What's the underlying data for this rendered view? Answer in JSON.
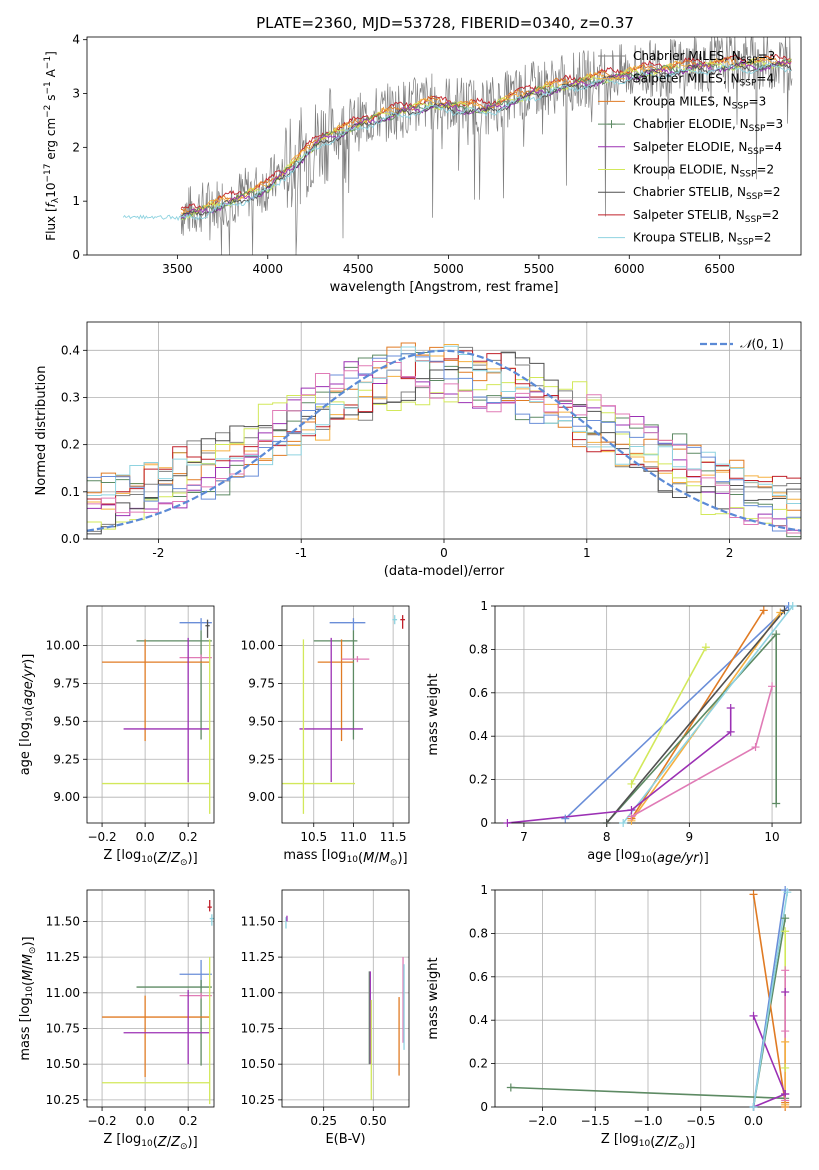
{
  "title": "PLATE=2360, MJD=53728, FIBERID=0340, z=0.37",
  "colors": {
    "chabrier_miles": "#808080",
    "salpeter_miles": "#f5b041",
    "kroupa_miles": "#e07b24",
    "chabrier_elodie": "#5d8a63",
    "salpeter_elodie": "#9b30b4",
    "kroupa_elodie": "#d2e85a",
    "chabrier_stelib": "#505050",
    "salpeter_stelib": "#c0202a",
    "kroupa_stelib": "#8fd3e0",
    "blue": "#6a8ed8",
    "pink": "#e07bb6"
  },
  "chart_data": [
    {
      "id": "spectrum",
      "type": "line",
      "xlabel": "wavelength [Angstrom, rest frame]",
      "ylabel_html": "Flux [<tspan font-style='italic'>f</tspan><tspan font-size='9' dy='3'>λ</tspan><tspan dy='-3'>10</tspan><tspan font-size='9' dy='-5'>−17</tspan><tspan dy='5'> erg cm</tspan><tspan font-size='9' dy='-5'>−2</tspan><tspan dy='5'> s</tspan><tspan font-size='9' dy='-5'>−1</tspan><tspan dy='5'> A</tspan><tspan font-size='9' dy='-5'>−1</tspan><tspan dy='5'>]</tspan>",
      "xlim": [
        3000,
        6950
      ],
      "ylim": [
        0,
        4.05
      ],
      "xticks": [
        3500,
        4000,
        4500,
        5000,
        5500,
        6000,
        6500
      ],
      "yticks": [
        0,
        1,
        2,
        3,
        4
      ],
      "legend": [
        {
          "label": "Chabrier MILES, N",
          "sub": "SSP",
          "n": "=3",
          "color": "chabrier_miles",
          "marker": false
        },
        {
          "label": "Salpeter MILES, N",
          "sub": "SSP",
          "n": "=4",
          "color": "salpeter_miles",
          "marker": false
        },
        {
          "label": "Kroupa MILES, N",
          "sub": "SSP",
          "n": "=3",
          "color": "kroupa_miles",
          "marker": false
        },
        {
          "label": "Chabrier ELODIE, N",
          "sub": "SSP",
          "n": "=3",
          "color": "chabrier_elodie",
          "marker": true
        },
        {
          "label": "Salpeter ELODIE, N",
          "sub": "SSP",
          "n": "=4",
          "color": "salpeter_elodie",
          "marker": false
        },
        {
          "label": "Kroupa ELODIE, N",
          "sub": "SSP",
          "n": "=2",
          "color": "kroupa_elodie",
          "marker": false
        },
        {
          "label": "Chabrier STELIB, N",
          "sub": "SSP",
          "n": "=2",
          "color": "chabrier_stelib",
          "marker": false
        },
        {
          "label": "Salpeter STELIB, N",
          "sub": "SSP",
          "n": "=2",
          "color": "salpeter_stelib",
          "marker": false
        },
        {
          "label": "Kroupa STELIB, N",
          "sub": "SSP",
          "n": "=2",
          "color": "kroupa_stelib",
          "marker": false
        }
      ],
      "data_trend": {
        "x": [
          3200,
          3500,
          3800,
          4000,
          4300,
          4600,
          4900,
          5200,
          5500,
          5800,
          6100,
          6400,
          6800
        ],
        "y": [
          0.72,
          0.75,
          1.05,
          1.3,
          2.2,
          2.6,
          2.85,
          2.75,
          3.1,
          3.3,
          3.45,
          3.55,
          3.6
        ]
      },
      "models": [
        {
          "color": "salpeter_stelib",
          "x_start": 3520,
          "offset": 0.05
        },
        {
          "color": "kroupa_miles",
          "x_start": 3520,
          "offset": 0.02
        },
        {
          "color": "salpeter_miles",
          "x_start": 3520,
          "offset": 0.0
        },
        {
          "color": "kroupa_elodie",
          "x_start": 3520,
          "offset": -0.04
        },
        {
          "color": "chabrier_elodie",
          "x_start": 3520,
          "offset": -0.06
        },
        {
          "color": "salpeter_elodie",
          "x_start": 3520,
          "offset": -0.08
        },
        {
          "color": "chabrier_stelib",
          "x_start": 3520,
          "offset": -0.1
        },
        {
          "color": "kroupa_stelib",
          "x_start": 3200,
          "offset": -0.12
        }
      ]
    },
    {
      "id": "residuals",
      "type": "histogram",
      "xlabel": "(data-model)/error",
      "ylabel": "Normed distribution",
      "xlim": [
        -2.5,
        2.5
      ],
      "ylim": [
        0,
        0.46
      ],
      "xticks": [
        -2,
        -1,
        0,
        1,
        2
      ],
      "yticks": [
        0.0,
        0.1,
        0.2,
        0.3,
        0.4
      ],
      "legend": "N(0,1)",
      "bin_width": 0.1,
      "series": [
        {
          "color": "chabrier_miles",
          "phase": 0.3
        },
        {
          "color": "salpeter_miles",
          "phase": 1.1
        },
        {
          "color": "kroupa_miles",
          "phase": 2.2
        },
        {
          "color": "chabrier_elodie",
          "phase": 3.1
        },
        {
          "color": "salpeter_elodie",
          "phase": 4.0
        },
        {
          "color": "kroupa_elodie",
          "phase": 5.3
        },
        {
          "color": "chabrier_stelib",
          "phase": 6.2
        },
        {
          "color": "salpeter_stelib",
          "phase": 7.4
        },
        {
          "color": "kroupa_stelib",
          "phase": 8.1
        },
        {
          "color": "blue",
          "phase": 9.3
        },
        {
          "color": "pink",
          "phase": 10.2
        }
      ]
    },
    {
      "id": "age_vs_Z",
      "type": "scatter",
      "xlabel": "Z [log₁₀(Z/Z⊙)]",
      "ylabel": "age  [log₁₀(age/yr)]",
      "xlim": [
        -0.27,
        0.32
      ],
      "ylim": [
        8.83,
        10.26
      ],
      "xticks": [
        -0.2,
        0.0,
        0.2
      ],
      "xticklabels": [
        "−0.2",
        "0.0",
        "0.2"
      ],
      "yticks": [
        9.0,
        9.25,
        9.5,
        9.75,
        10.0
      ],
      "yticklabels": [
        "9.00",
        "9.25",
        "9.50",
        "9.75",
        "10.00"
      ],
      "points": [
        {
          "color": "blue",
          "x": 0.26,
          "y": 10.15,
          "xerr": [
            0.1,
            0.05
          ],
          "yerr": [
            0.05,
            0.03
          ]
        },
        {
          "color": "chabrier_elodie",
          "x": 0.26,
          "y": 10.03,
          "xerr": [
            0.3,
            0.05
          ],
          "yerr": [
            0.65,
            0.07
          ]
        },
        {
          "color": "kroupa_miles",
          "x": 0.0,
          "y": 9.89,
          "xerr": [
            0.2,
            0.3
          ],
          "yerr": [
            0.52,
            0.15
          ]
        },
        {
          "color": "pink",
          "x": 0.26,
          "y": 9.92,
          "xerr": [
            0.1,
            0.05
          ],
          "yerr": [
            0.02,
            0.02
          ]
        },
        {
          "color": "salpeter_elodie",
          "x": 0.2,
          "y": 9.45,
          "xerr": [
            0.3,
            0.1
          ],
          "yerr": [
            0.35,
            0.6
          ]
        },
        {
          "color": "kroupa_elodie",
          "x": 0.3,
          "y": 9.09,
          "xerr": [
            0.5,
            0.0
          ],
          "yerr": [
            0.2,
            0.95
          ]
        },
        {
          "color": "chabrier_stelib",
          "x": 0.29,
          "y": 10.13,
          "xerr": [
            0.01,
            0.01
          ],
          "yerr": [
            0.08,
            0.04
          ]
        }
      ]
    },
    {
      "id": "age_vs_mass",
      "type": "scatter",
      "xlabel": "mass [log₁₀(M/M⊙)]",
      "ylabel": "",
      "xlim": [
        10.1,
        11.7
      ],
      "ylim": [
        8.83,
        10.26
      ],
      "xticks": [
        10.5,
        11.0,
        11.5
      ],
      "xticklabels": [
        "10.5",
        "11.0",
        "11.5"
      ],
      "yticks": [
        9.0,
        9.25,
        9.5,
        9.75,
        10.0
      ],
      "yticklabels": [
        "9.00",
        "9.25",
        "9.50",
        "9.75",
        "10.00"
      ],
      "points": [
        {
          "color": "blue",
          "x": 11.0,
          "y": 10.15,
          "xerr": [
            0.3,
            0.15
          ],
          "yerr": [
            0.05,
            0.03
          ]
        },
        {
          "color": "chabrier_elodie",
          "x": 11.0,
          "y": 10.03,
          "xerr": [
            0.5,
            0.05
          ],
          "yerr": [
            0.65,
            0.07
          ]
        },
        {
          "color": "kroupa_miles",
          "x": 10.85,
          "y": 9.89,
          "xerr": [
            0.3,
            0.15
          ],
          "yerr": [
            0.52,
            0.15
          ]
        },
        {
          "color": "pink",
          "x": 11.05,
          "y": 9.91,
          "xerr": [
            0.2,
            0.15
          ],
          "yerr": [
            0.02,
            0.02
          ]
        },
        {
          "color": "salpeter_elodie",
          "x": 10.72,
          "y": 9.45,
          "xerr": [
            0.4,
            0.4
          ],
          "yerr": [
            0.35,
            0.6
          ]
        },
        {
          "color": "kroupa_elodie",
          "x": 10.37,
          "y": 9.09,
          "xerr": [
            0.28,
            0.65
          ],
          "yerr": [
            0.2,
            0.95
          ]
        },
        {
          "color": "salpeter_stelib",
          "x": 11.62,
          "y": 10.17,
          "xerr": [
            0.03,
            0.03
          ],
          "yerr": [
            0.06,
            0.03
          ]
        },
        {
          "color": "kroupa_stelib",
          "x": 11.52,
          "y": 10.17,
          "xerr": [
            0.03,
            0.03
          ],
          "yerr": [
            0.03,
            0.03
          ]
        }
      ]
    },
    {
      "id": "weight_vs_age",
      "type": "line",
      "xlabel": "age  [log₁₀(age/yr)]",
      "ylabel": "mass weight",
      "xlim": [
        6.65,
        10.35
      ],
      "ylim": [
        0,
        1.0
      ],
      "xticks": [
        7,
        8,
        9,
        10
      ],
      "yticks": [
        0.0,
        0.2,
        0.4,
        0.6,
        0.8,
        1.0
      ],
      "series": [
        {
          "color": "blue",
          "x": [
            7.5,
            10.2
          ],
          "y": [
            0.02,
            1.0
          ]
        },
        {
          "color": "kroupa_miles",
          "x": [
            8.3,
            9.9
          ],
          "y": [
            0.02,
            0.98
          ]
        },
        {
          "color": "salpeter_miles",
          "x": [
            8.3,
            10.1
          ],
          "y": [
            0.01,
            0.97
          ]
        },
        {
          "color": "kroupa_elodie",
          "x": [
            8.3,
            9.2
          ],
          "y": [
            0.18,
            0.81
          ]
        },
        {
          "color": "chabrier_elodie",
          "x": [
            8.0,
            10.05,
            10.05
          ],
          "y": [
            0.0,
            0.87,
            0.09
          ]
        },
        {
          "color": "chabrier_stelib",
          "x": [
            8.0,
            10.15
          ],
          "y": [
            0.0,
            0.98
          ]
        },
        {
          "color": "kroupa_stelib",
          "x": [
            8.2,
            10.25
          ],
          "y": [
            0.0,
            1.0
          ]
        },
        {
          "color": "pink",
          "x": [
            8.3,
            9.8,
            10.0
          ],
          "y": [
            0.03,
            0.35,
            0.63
          ]
        },
        {
          "color": "salpeter_elodie",
          "x": [
            6.8,
            8.3,
            9.5,
            9.5
          ],
          "y": [
            0.0,
            0.06,
            0.42,
            0.53
          ]
        }
      ]
    },
    {
      "id": "mass_vs_Z",
      "type": "scatter",
      "xlabel": "Z [log₁₀(Z/Z⊙)]",
      "ylabel": "mass [log₁₀(M/M⊙)]",
      "xlim": [
        -0.27,
        0.32
      ],
      "ylim": [
        10.2,
        11.72
      ],
      "xticks": [
        -0.2,
        0.0,
        0.2
      ],
      "xticklabels": [
        "−0.2",
        "0.0",
        "0.2"
      ],
      "yticks": [
        10.25,
        10.5,
        10.75,
        11.0,
        11.25,
        11.5
      ],
      "yticklabels": [
        "10.25",
        "10.50",
        "10.75",
        "11.00",
        "11.25",
        "11.50"
      ],
      "points": [
        {
          "color": "blue",
          "x": 0.26,
          "y": 11.13,
          "xerr": [
            0.1,
            0.05
          ],
          "yerr": [
            0.1,
            0.1
          ]
        },
        {
          "color": "chabrier_elodie",
          "x": 0.26,
          "y": 11.04,
          "xerr": [
            0.3,
            0.05
          ],
          "yerr": [
            0.55,
            0.05
          ]
        },
        {
          "color": "pink",
          "x": 0.26,
          "y": 10.98,
          "xerr": [
            0.1,
            0.05
          ],
          "yerr": [
            0.02,
            0.02
          ]
        },
        {
          "color": "kroupa_miles",
          "x": 0.0,
          "y": 10.83,
          "xerr": [
            0.2,
            0.3
          ],
          "yerr": [
            0.42,
            0.15
          ]
        },
        {
          "color": "salpeter_elodie",
          "x": 0.2,
          "y": 10.72,
          "xerr": [
            0.3,
            0.1
          ],
          "yerr": [
            0.22,
            0.3
          ]
        },
        {
          "color": "kroupa_elodie",
          "x": 0.3,
          "y": 10.37,
          "xerr": [
            0.5,
            0.0
          ],
          "yerr": [
            0.15,
            0.88
          ]
        },
        {
          "color": "salpeter_stelib",
          "x": 0.3,
          "y": 11.6,
          "xerr": [
            0.01,
            0.01
          ],
          "yerr": [
            0.03,
            0.05
          ]
        },
        {
          "color": "kroupa_stelib",
          "x": 0.31,
          "y": 11.52,
          "xerr": [
            0.01,
            0.01
          ],
          "yerr": [
            0.05,
            0.03
          ]
        }
      ]
    },
    {
      "id": "mass_vs_ebv",
      "type": "scatter",
      "xlabel": "E(B-V)",
      "ylabel": "",
      "xlim": [
        0.04,
        0.68
      ],
      "ylim": [
        10.2,
        11.72
      ],
      "xticks": [
        0.25,
        0.5
      ],
      "xticklabels": [
        "0.25",
        "0.50"
      ],
      "yticks": [
        10.25,
        10.5,
        10.75,
        11.0,
        11.25,
        11.5
      ],
      "yticklabels": [
        "10.25",
        "10.50",
        "10.75",
        "11.00",
        "11.25",
        "11.50"
      ],
      "points": [
        {
          "color": "chabrier_elodie",
          "x": 0.48,
          "y": 10.85,
          "xerr": [
            0,
            0
          ],
          "yerr": [
            0.35,
            0.3
          ]
        },
        {
          "color": "salpeter_elodie",
          "x": 0.485,
          "y": 10.85,
          "xerr": [
            0,
            0
          ],
          "yerr": [
            0.35,
            0.3
          ]
        },
        {
          "color": "kroupa_elodie",
          "x": 0.49,
          "y": 10.75,
          "xerr": [
            0,
            0
          ],
          "yerr": [
            0.5,
            0.2
          ]
        },
        {
          "color": "kroupa_miles",
          "x": 0.63,
          "y": 10.72,
          "xerr": [
            0,
            0
          ],
          "yerr": [
            0.3,
            0.25
          ]
        },
        {
          "color": "pink",
          "x": 0.65,
          "y": 10.95,
          "xerr": [
            0,
            0
          ],
          "yerr": [
            0.3,
            0.3
          ]
        },
        {
          "color": "kroupa_stelib",
          "x": 0.655,
          "y": 10.9,
          "xerr": [
            0,
            0
          ],
          "yerr": [
            0.3,
            0.3
          ]
        },
        {
          "color": "kroupa_stelib",
          "x": 0.06,
          "y": 11.5,
          "xerr": [
            0,
            0
          ],
          "yerr": [
            0.05,
            0.03
          ]
        },
        {
          "color": "salpeter_elodie",
          "x": 0.065,
          "y": 11.52,
          "xerr": [
            0,
            0
          ],
          "yerr": [
            0.02,
            0.02
          ]
        }
      ]
    },
    {
      "id": "weight_vs_Z",
      "type": "line",
      "xlabel": "Z [log₁₀(Z/Z⊙)]",
      "ylabel": "mass weight",
      "xlim": [
        -2.45,
        0.45
      ],
      "ylim": [
        0,
        1.0
      ],
      "xticks": [
        -2.0,
        -1.5,
        -1.0,
        -0.5,
        0.0
      ],
      "xticklabels": [
        "−2.0",
        "−1.5",
        "−1.0",
        "−0.5",
        "0.0"
      ],
      "yticks": [
        0.0,
        0.2,
        0.4,
        0.6,
        0.8,
        1.0
      ],
      "series": [
        {
          "color": "chabrier_elodie",
          "x": [
            -2.3,
            0.3
          ],
          "y": [
            0.09,
            0.04
          ]
        },
        {
          "color": "chabrier_elodie",
          "x": [
            0.0,
            0.3
          ],
          "y": [
            0.0,
            0.87
          ]
        },
        {
          "color": "kroupa_miles",
          "x": [
            0.0,
            0.3,
            0.3
          ],
          "y": [
            0.98,
            0.02,
            0.0
          ]
        },
        {
          "color": "salpeter_elodie",
          "x": [
            0.0,
            0.3,
            0.0
          ],
          "y": [
            0.42,
            0.06,
            0.0
          ]
        },
        {
          "color": "salpeter_elodie",
          "x": [
            0.3,
            0.3
          ],
          "y": [
            0.06,
            0.53
          ]
        },
        {
          "color": "blue",
          "x": [
            0.0,
            0.3
          ],
          "y": [
            0.0,
            1.0
          ]
        },
        {
          "color": "kroupa_stelib",
          "x": [
            0.0,
            0.32
          ],
          "y": [
            0.0,
            0.99
          ]
        },
        {
          "color": "kroupa_elodie",
          "x": [
            0.3,
            0.3
          ],
          "y": [
            0.18,
            0.81
          ]
        },
        {
          "color": "pink",
          "x": [
            0.3,
            0.3,
            0.3
          ],
          "y": [
            0.03,
            0.35,
            0.63
          ]
        },
        {
          "color": "salpeter_miles",
          "x": [
            0.3,
            0.3
          ],
          "y": [
            0.01,
            0.3
          ]
        }
      ]
    }
  ]
}
